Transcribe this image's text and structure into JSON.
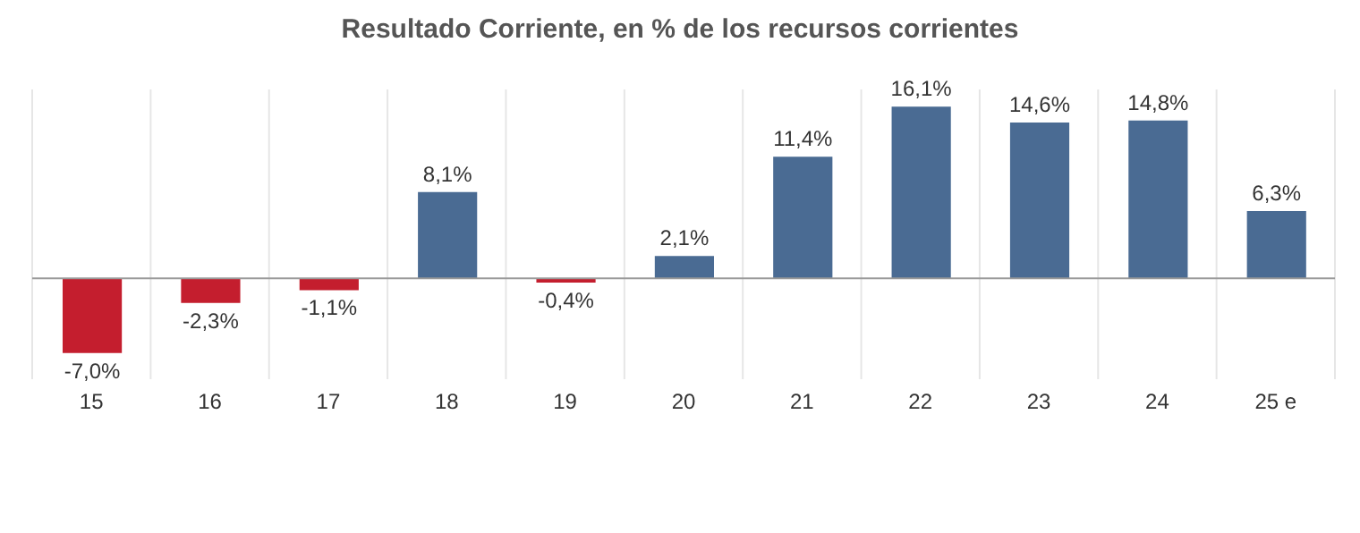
{
  "chart_data": {
    "type": "bar",
    "title": "Resultado Corriente, en % de los recursos corrientes",
    "categories": [
      "15",
      "16",
      "17",
      "18",
      "19",
      "20",
      "21",
      "22",
      "23",
      "24",
      "25 e"
    ],
    "values": [
      -7.0,
      -2.3,
      -1.1,
      8.1,
      -0.4,
      2.1,
      11.4,
      16.1,
      14.6,
      14.8,
      6.3
    ],
    "value_labels": [
      "-7,0%",
      "-2,3%",
      "-1,1%",
      "8,1%",
      "-0,4%",
      "2,1%",
      "11,4%",
      "16,1%",
      "14,6%",
      "14,8%",
      "6,3%"
    ],
    "colors": [
      "#c41e2e",
      "#c41e2e",
      "#c41e2e",
      "#4a6b93",
      "#c41e2e",
      "#4a6b93",
      "#4a6b93",
      "#4a6b93",
      "#4a6b93",
      "#4a6b93",
      "#4a6b93"
    ],
    "grid": "x"
  }
}
